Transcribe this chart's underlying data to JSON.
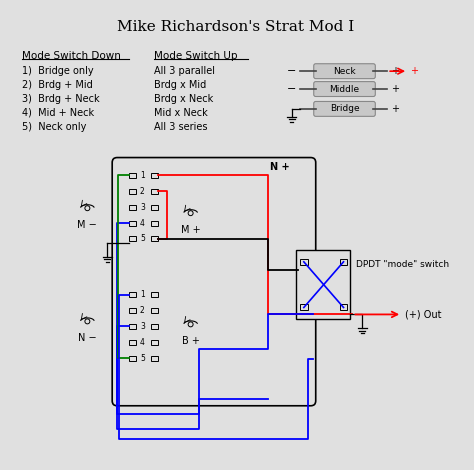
{
  "title": "Mike Richardson's Strat Mod I",
  "bg_color": "#e0e0e0",
  "text_color": "#000000",
  "mode_down_header": "Mode Switch Down",
  "mode_up_header": "Mode Switch Up",
  "mode_down_items": [
    "1)  Bridge only",
    "2)  Brdg + Mid",
    "3)  Brdg + Neck",
    "4)  Mid + Neck",
    "5)  Neck only"
  ],
  "mode_up_items": [
    "All 3 parallel",
    "Brdg x Mid",
    "Brdg x Neck",
    "Mid x Neck",
    "All 3 series"
  ],
  "pickup_labels": [
    "Neck",
    "Middle",
    "Bridge"
  ],
  "dpdt_label": "DPDT \"mode\" switch",
  "out_label": "(+) Out",
  "M_minus": "M −",
  "N_minus": "N −",
  "M_plus": "M +",
  "B_plus": "B +",
  "N_plus": "N +"
}
